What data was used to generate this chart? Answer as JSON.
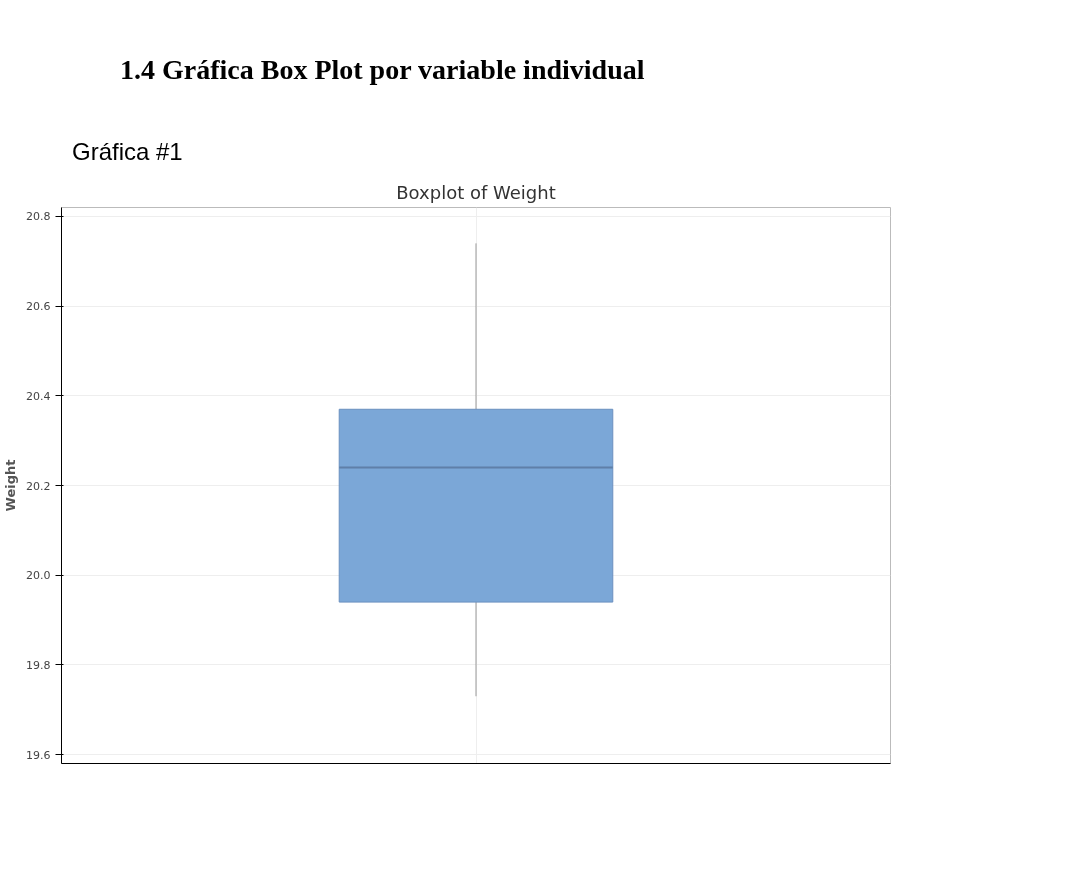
{
  "chart_data": {
    "type": "box",
    "title": "Boxplot of Weight",
    "ylabel": "Weight",
    "annotations": [
      "1.4   Gráfica Box Plot por variable individual",
      "Gráfica #1"
    ],
    "categories": [
      null
    ],
    "boxes": [
      {
        "low": 19.73,
        "q1": 19.94,
        "median": 20.24,
        "q3": 20.37,
        "high": 20.74
      }
    ],
    "color": "#7ba7d7",
    "ylim": [
      19.58,
      20.82
    ],
    "yticks": [
      {
        "value": 19.6,
        "label": "19.6"
      },
      {
        "value": 19.8,
        "label": "19.8"
      },
      {
        "value": 20.0,
        "label": "20.0"
      },
      {
        "value": 20.2,
        "label": "20.2"
      },
      {
        "value": 20.4,
        "label": "20.4"
      },
      {
        "value": 20.6,
        "label": "20.6"
      },
      {
        "value": 20.8,
        "label": "20.8"
      }
    ],
    "grid": true
  }
}
